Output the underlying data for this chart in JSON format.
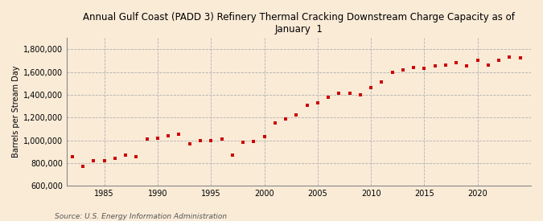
{
  "title": "Annual Gulf Coast (PADD 3) Refinery Thermal Cracking Downstream Charge Capacity as of\nJanuary  1",
  "ylabel": "Barrels per Stream Day",
  "source": "Source: U.S. Energy Information Administration",
  "background_color": "#faebd7",
  "plot_background_color": "#faebd7",
  "marker_color": "#cc0000",
  "ylim": [
    600000,
    1900000
  ],
  "yticks": [
    600000,
    800000,
    1000000,
    1200000,
    1400000,
    1600000,
    1800000
  ],
  "xlim": [
    1981.5,
    2025
  ],
  "xticks": [
    1985,
    1990,
    1995,
    2000,
    2005,
    2010,
    2015,
    2020
  ],
  "years": [
    1982,
    1983,
    1984,
    1985,
    1986,
    1987,
    1988,
    1989,
    1990,
    1991,
    1992,
    1993,
    1994,
    1995,
    1996,
    1997,
    1998,
    1999,
    2000,
    2001,
    2002,
    2003,
    2004,
    2005,
    2006,
    2007,
    2008,
    2009,
    2010,
    2011,
    2012,
    2013,
    2014,
    2015,
    2016,
    2017,
    2018,
    2019,
    2020,
    2021,
    2022,
    2023,
    2024
  ],
  "values": [
    860000,
    775000,
    820000,
    820000,
    840000,
    870000,
    860000,
    1010000,
    1020000,
    1040000,
    1055000,
    970000,
    1000000,
    1000000,
    1010000,
    870000,
    985000,
    990000,
    1030000,
    1150000,
    1185000,
    1225000,
    1310000,
    1330000,
    1380000,
    1410000,
    1410000,
    1400000,
    1460000,
    1510000,
    1595000,
    1615000,
    1640000,
    1635000,
    1650000,
    1660000,
    1680000,
    1650000,
    1700000,
    1660000,
    1700000,
    1730000,
    1720000
  ],
  "title_fontsize": 8.5,
  "ylabel_fontsize": 7,
  "tick_fontsize": 7,
  "source_fontsize": 6.5,
  "marker_size": 9
}
